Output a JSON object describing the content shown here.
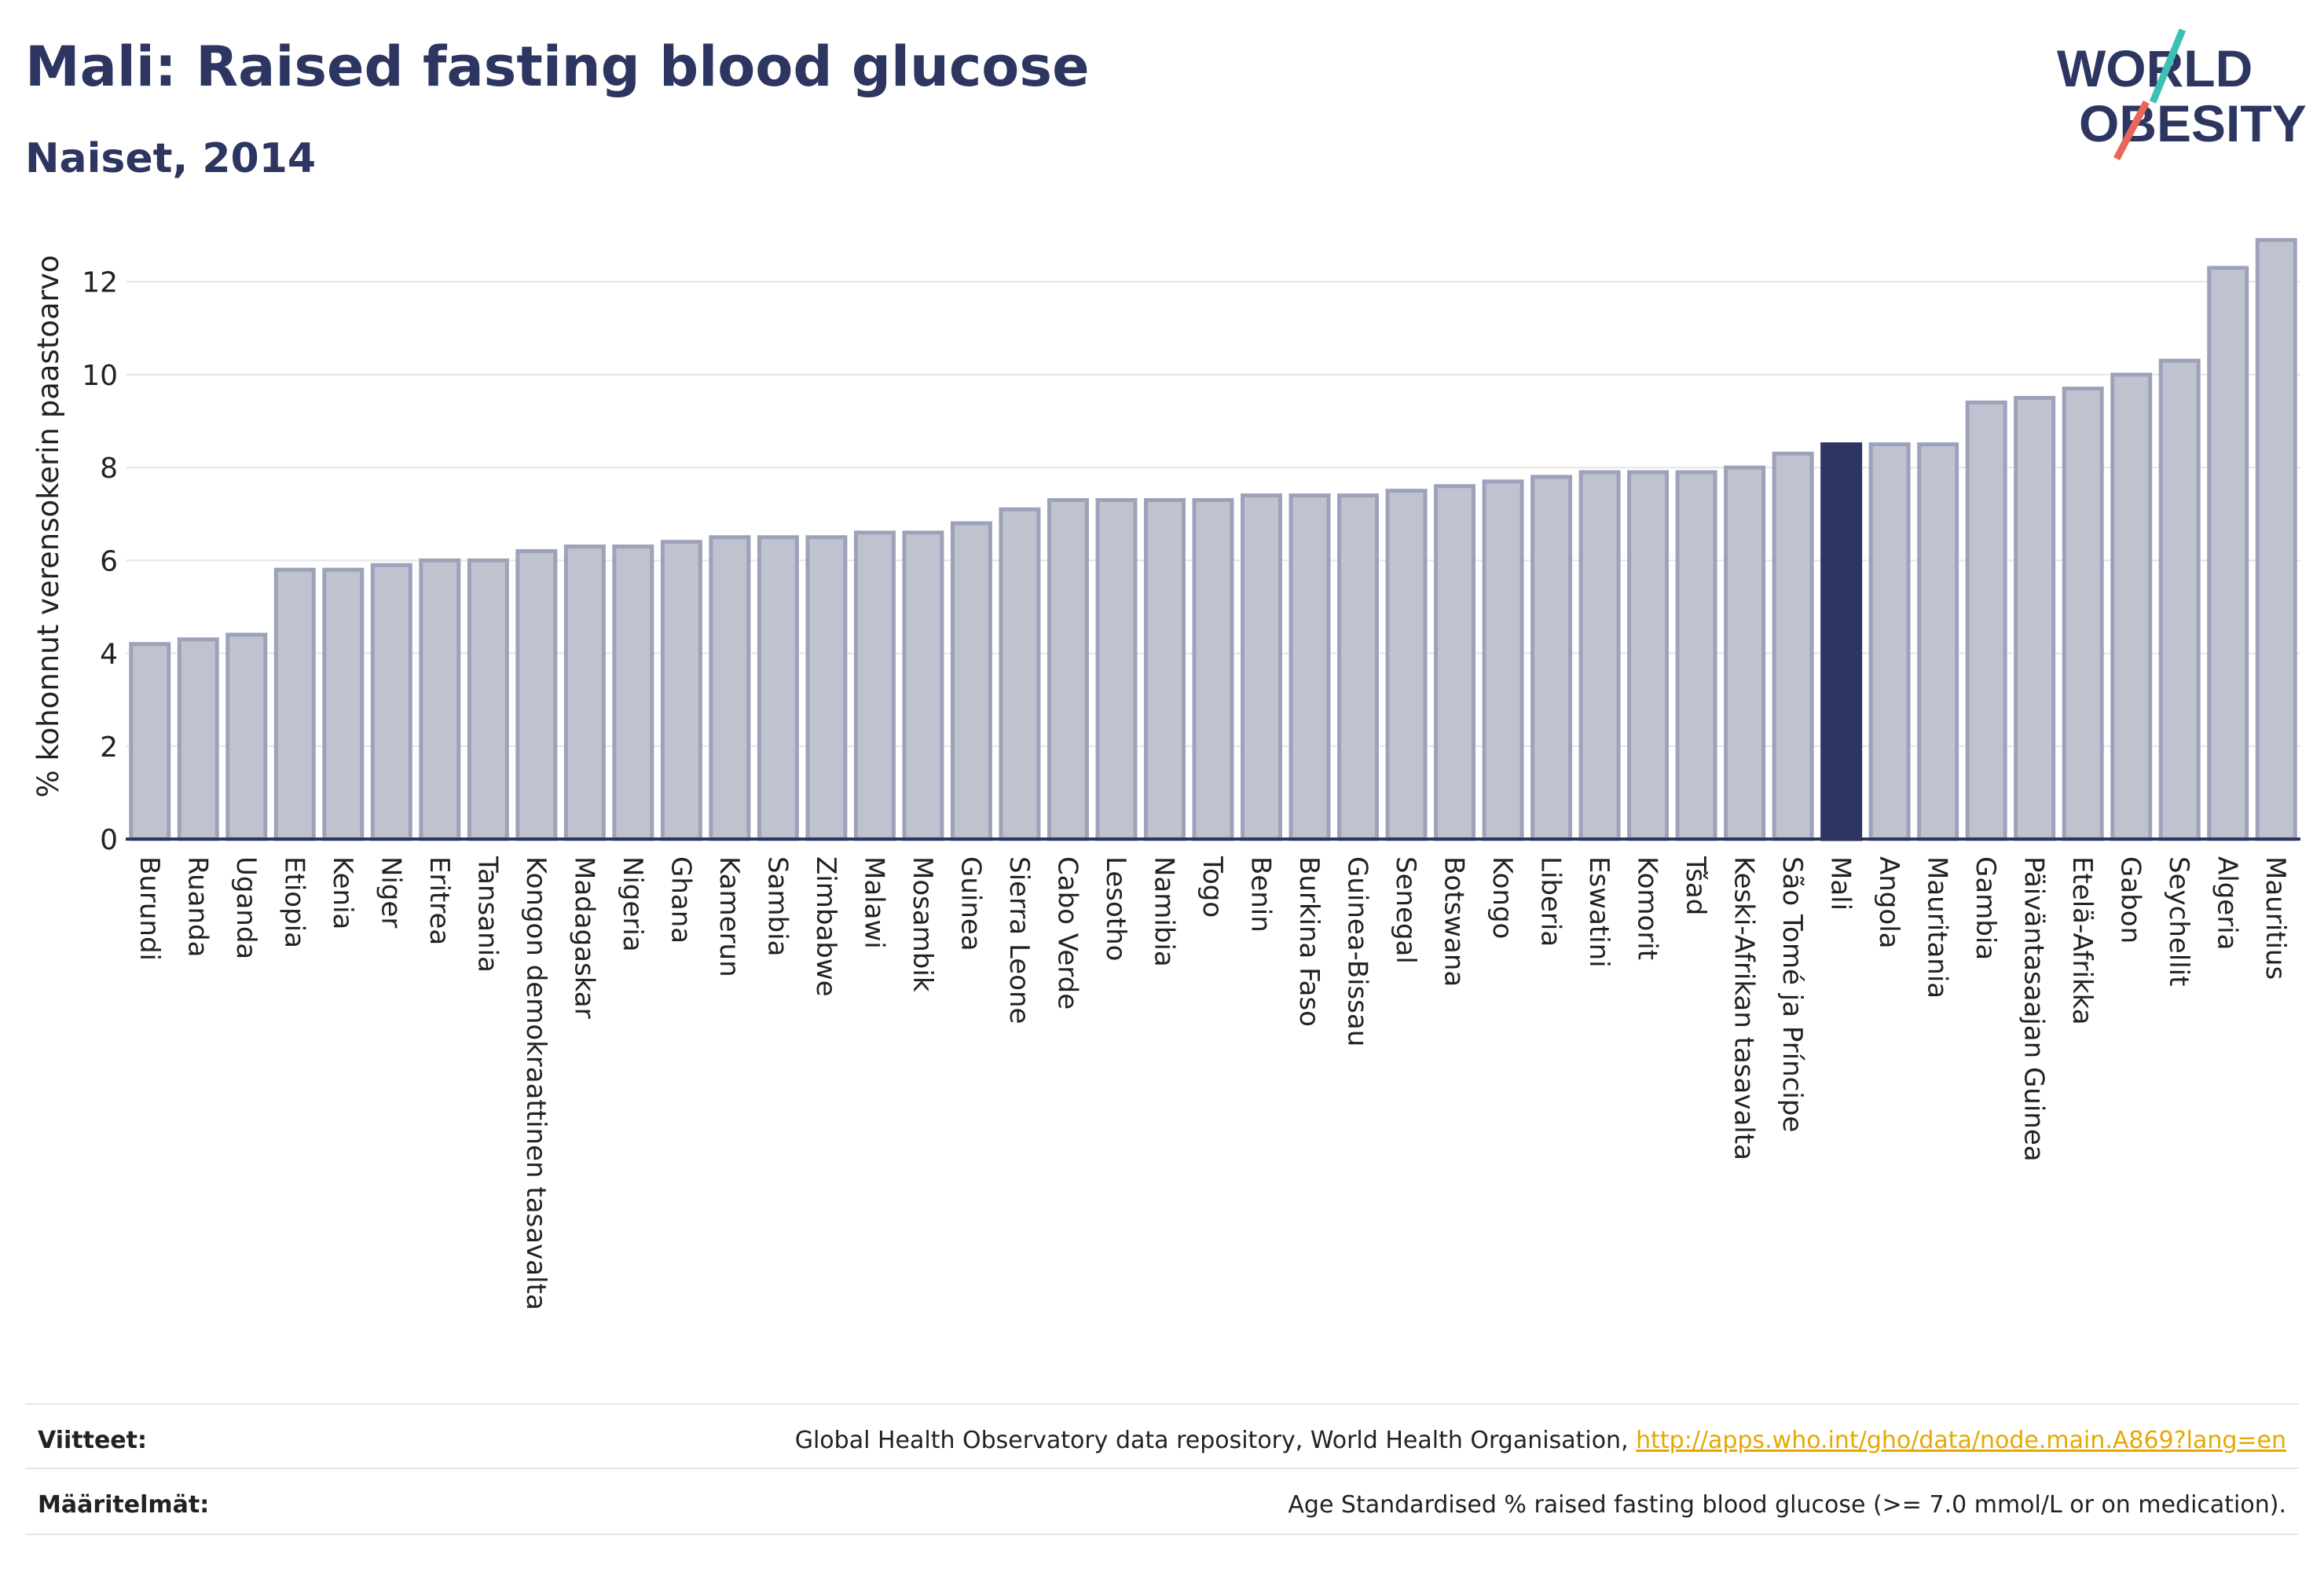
{
  "header": {
    "title": "Mali: Raised fasting blood glucose",
    "subtitle": "Naiset, 2014",
    "logo_text": [
      "WORLD",
      "OBESITY"
    ]
  },
  "colors": {
    "bar": "#bfc2cf",
    "bar_stroke": "#9da2ba",
    "highlight": "#2d3561",
    "grid": "#e5e5ea",
    "logo_teal": "#3cbfb4",
    "logo_red": "#e8665a"
  },
  "chart_data": {
    "type": "bar",
    "ylabel": "% kohonnut verensokerin paastoarvo",
    "ylim": [
      0,
      13.5
    ],
    "yticks": [
      0,
      2,
      4,
      6,
      8,
      10,
      12
    ],
    "grid": true,
    "highlight": "Mali",
    "categories": [
      "Burundi",
      "Ruanda",
      "Uganda",
      "Etiopia",
      "Kenia",
      "Niger",
      "Eritrea",
      "Tansania",
      "Kongon demokraattinen tasavalta",
      "Madagaskar",
      "Nigeria",
      "Ghana",
      "Kamerun",
      "Sambia",
      "Zimbabwe",
      "Malawi",
      "Mosambik",
      "Guinea",
      "Sierra Leone",
      "Cabo Verde",
      "Lesotho",
      "Namibia",
      "Togo",
      "Benin",
      "Burkina Faso",
      "Guinea-Bissau",
      "Senegal",
      "Botswana",
      "Kongo",
      "Liberia",
      "Eswatini",
      "Komorit",
      "Tšad",
      "Keski-Afrikan tasavalta",
      "São Tomé ja Príncipe",
      "Mali",
      "Angola",
      "Mauritania",
      "Gambia",
      "Päiväntasaajan Guinea",
      "Etelä-Afrikka",
      "Gabon",
      "Seychellit",
      "Algeria",
      "Mauritius"
    ],
    "values": [
      4.2,
      4.3,
      4.4,
      5.8,
      5.8,
      5.9,
      6.0,
      6.0,
      6.2,
      6.3,
      6.3,
      6.4,
      6.5,
      6.5,
      6.5,
      6.6,
      6.6,
      6.8,
      7.1,
      7.3,
      7.3,
      7.3,
      7.3,
      7.4,
      7.4,
      7.4,
      7.5,
      7.6,
      7.7,
      7.8,
      7.9,
      7.9,
      7.9,
      8.0,
      8.3,
      8.5,
      8.5,
      8.5,
      9.4,
      9.5,
      9.7,
      10.0,
      10.3,
      12.3,
      12.9
    ]
  },
  "footer": {
    "references_label": "Viitteet:",
    "references_text": "Global Health Observatory data repository, World Health Organisation, ",
    "references_link": "http://apps.who.int/gho/data/node.main.A869?lang=en",
    "definitions_label": "Määritelmät:",
    "definitions_text": "Age Standardised % raised fasting blood glucose (>= 7.0 mmol/L or on medication)."
  }
}
